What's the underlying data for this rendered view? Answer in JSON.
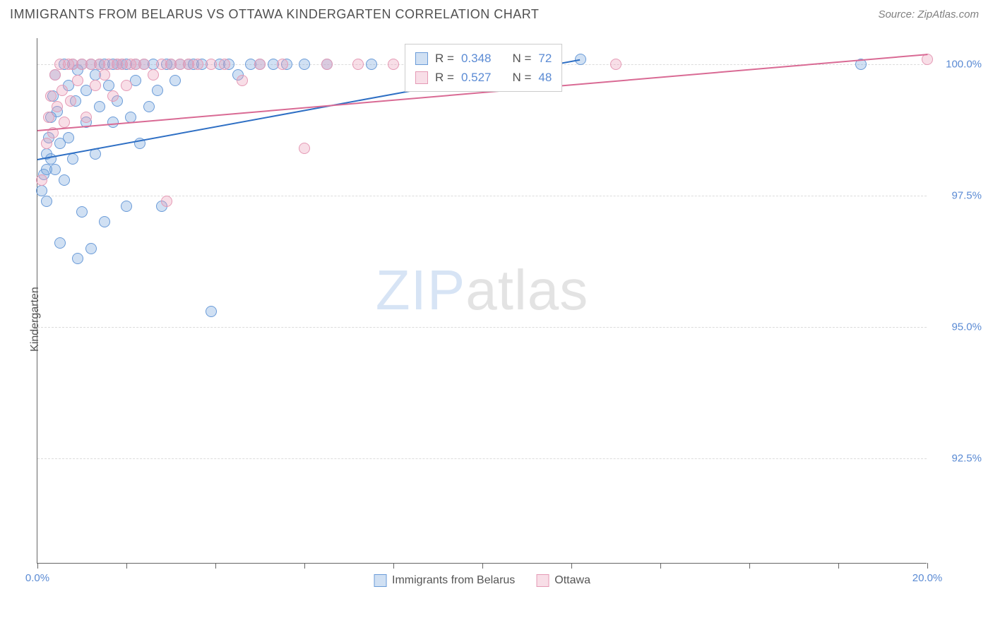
{
  "title": "IMMIGRANTS FROM BELARUS VS OTTAWA KINDERGARTEN CORRELATION CHART",
  "source_text": "Source: ZipAtlas.com",
  "ylabel": "Kindergarten",
  "watermark": {
    "bold": "ZIP",
    "thin": "atlas"
  },
  "chart": {
    "type": "scatter",
    "background_color": "#ffffff",
    "grid_color": "#dcdcdc",
    "axis_color": "#666666",
    "tick_label_color": "#5b8bd4",
    "xlim": [
      0.0,
      20.0
    ],
    "ylim": [
      90.5,
      100.5
    ],
    "y_gridlines": [
      92.5,
      95.0,
      97.5,
      100.0
    ],
    "y_tick_labels": [
      "92.5%",
      "95.0%",
      "97.5%",
      "100.0%"
    ],
    "x_ticks": [
      0,
      2,
      4,
      6,
      8,
      10,
      12,
      14,
      16,
      18,
      20
    ],
    "x_tick_labels": {
      "0": "0.0%",
      "20": "20.0%"
    },
    "marker_radius": 8,
    "marker_stroke_width": 1.5,
    "series": [
      {
        "name": "Immigrants from Belarus",
        "fill": "rgba(120,165,220,0.35)",
        "stroke": "#6a9bd8",
        "trend_color": "#2e6fc4",
        "R": "0.348",
        "N": "72",
        "trend": {
          "x1": 0.0,
          "y1": 98.2,
          "x2": 12.2,
          "y2": 100.1
        },
        "points": [
          [
            0.1,
            97.6
          ],
          [
            0.15,
            97.9
          ],
          [
            0.2,
            98.3
          ],
          [
            0.2,
            98.0
          ],
          [
            0.2,
            97.4
          ],
          [
            0.25,
            98.6
          ],
          [
            0.3,
            99.0
          ],
          [
            0.3,
            98.2
          ],
          [
            0.35,
            99.4
          ],
          [
            0.4,
            99.8
          ],
          [
            0.4,
            98.0
          ],
          [
            0.45,
            99.1
          ],
          [
            0.5,
            96.6
          ],
          [
            0.5,
            98.5
          ],
          [
            0.6,
            100.0
          ],
          [
            0.6,
            97.8
          ],
          [
            0.7,
            99.6
          ],
          [
            0.7,
            98.6
          ],
          [
            0.8,
            100.0
          ],
          [
            0.8,
            98.2
          ],
          [
            0.85,
            99.3
          ],
          [
            0.9,
            96.3
          ],
          [
            0.9,
            99.9
          ],
          [
            1.0,
            100.0
          ],
          [
            1.0,
            97.2
          ],
          [
            1.1,
            99.5
          ],
          [
            1.1,
            98.9
          ],
          [
            1.2,
            100.0
          ],
          [
            1.2,
            96.5
          ],
          [
            1.3,
            99.8
          ],
          [
            1.3,
            98.3
          ],
          [
            1.4,
            100.0
          ],
          [
            1.4,
            99.2
          ],
          [
            1.5,
            97.0
          ],
          [
            1.5,
            100.0
          ],
          [
            1.6,
            99.6
          ],
          [
            1.7,
            100.0
          ],
          [
            1.7,
            98.9
          ],
          [
            1.8,
            100.0
          ],
          [
            1.8,
            99.3
          ],
          [
            1.9,
            100.0
          ],
          [
            2.0,
            97.3
          ],
          [
            2.0,
            100.0
          ],
          [
            2.1,
            99.0
          ],
          [
            2.2,
            100.0
          ],
          [
            2.2,
            99.7
          ],
          [
            2.3,
            98.5
          ],
          [
            2.4,
            100.0
          ],
          [
            2.5,
            99.2
          ],
          [
            2.6,
            100.0
          ],
          [
            2.7,
            99.5
          ],
          [
            2.8,
            97.3
          ],
          [
            2.9,
            100.0
          ],
          [
            3.0,
            100.0
          ],
          [
            3.1,
            99.7
          ],
          [
            3.2,
            100.0
          ],
          [
            3.4,
            100.0
          ],
          [
            3.5,
            100.0
          ],
          [
            3.7,
            100.0
          ],
          [
            3.9,
            95.3
          ],
          [
            4.1,
            100.0
          ],
          [
            4.3,
            100.0
          ],
          [
            4.5,
            99.8
          ],
          [
            4.8,
            100.0
          ],
          [
            5.0,
            100.0
          ],
          [
            5.3,
            100.0
          ],
          [
            5.6,
            100.0
          ],
          [
            6.0,
            100.0
          ],
          [
            6.5,
            100.0
          ],
          [
            7.5,
            100.0
          ],
          [
            12.2,
            100.1
          ],
          [
            18.5,
            100.0
          ]
        ]
      },
      {
        "name": "Ottawa",
        "fill": "rgba(235,160,185,0.35)",
        "stroke": "#e59ab5",
        "trend_color": "#d96a94",
        "R": "0.527",
        "N": "48",
        "trend": {
          "x1": 0.0,
          "y1": 98.75,
          "x2": 20.0,
          "y2": 100.2
        },
        "points": [
          [
            0.1,
            97.8
          ],
          [
            0.2,
            98.5
          ],
          [
            0.25,
            99.0
          ],
          [
            0.3,
            99.4
          ],
          [
            0.35,
            98.7
          ],
          [
            0.4,
            99.8
          ],
          [
            0.45,
            99.2
          ],
          [
            0.5,
            100.0
          ],
          [
            0.55,
            99.5
          ],
          [
            0.6,
            98.9
          ],
          [
            0.7,
            100.0
          ],
          [
            0.75,
            99.3
          ],
          [
            0.8,
            100.0
          ],
          [
            0.9,
            99.7
          ],
          [
            1.0,
            100.0
          ],
          [
            1.1,
            99.0
          ],
          [
            1.2,
            100.0
          ],
          [
            1.3,
            99.6
          ],
          [
            1.4,
            100.0
          ],
          [
            1.5,
            99.8
          ],
          [
            1.6,
            100.0
          ],
          [
            1.7,
            99.4
          ],
          [
            1.8,
            100.0
          ],
          [
            1.9,
            100.0
          ],
          [
            2.0,
            99.6
          ],
          [
            2.1,
            100.0
          ],
          [
            2.2,
            100.0
          ],
          [
            2.4,
            100.0
          ],
          [
            2.6,
            99.8
          ],
          [
            2.8,
            100.0
          ],
          [
            2.9,
            97.4
          ],
          [
            3.0,
            100.0
          ],
          [
            3.2,
            100.0
          ],
          [
            3.4,
            100.0
          ],
          [
            3.6,
            100.0
          ],
          [
            3.9,
            100.0
          ],
          [
            4.2,
            100.0
          ],
          [
            4.6,
            99.7
          ],
          [
            5.0,
            100.0
          ],
          [
            5.5,
            100.0
          ],
          [
            6.0,
            98.4
          ],
          [
            6.5,
            100.0
          ],
          [
            7.2,
            100.0
          ],
          [
            8.0,
            100.0
          ],
          [
            9.0,
            100.0
          ],
          [
            10.5,
            100.0
          ],
          [
            13.0,
            100.0
          ],
          [
            20.0,
            100.1
          ]
        ]
      }
    ],
    "legend_box": {
      "border_color": "#cccccc",
      "text_color": "#555555",
      "value_color": "#5b8bd4",
      "rows": [
        {
          "swatch_fill": "rgba(120,165,220,0.35)",
          "swatch_stroke": "#6a9bd8",
          "R_label": "R =",
          "R": "0.348",
          "N_label": "N =",
          "N": "72"
        },
        {
          "swatch_fill": "rgba(235,160,185,0.35)",
          "swatch_stroke": "#e59ab5",
          "R_label": "R =",
          "R": "0.527",
          "N_label": "N =",
          "N": "48"
        }
      ]
    },
    "bottom_legend": [
      {
        "swatch_fill": "rgba(120,165,220,0.35)",
        "swatch_stroke": "#6a9bd8",
        "label": "Immigrants from Belarus"
      },
      {
        "swatch_fill": "rgba(235,160,185,0.35)",
        "swatch_stroke": "#e59ab5",
        "label": "Ottawa"
      }
    ]
  }
}
